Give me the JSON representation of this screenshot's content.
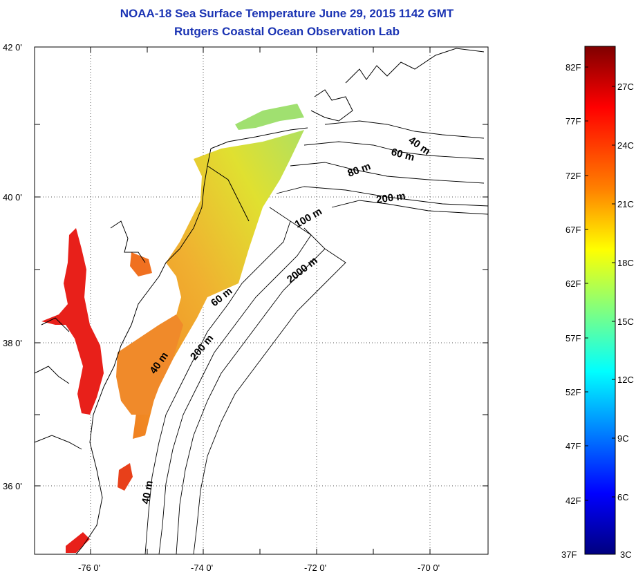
{
  "title": "NOAA-18 Sea Surface Temperature June 29, 2015 1142 GMT",
  "subtitle": "Rutgers Coastal Ocean Observation Lab",
  "map": {
    "lat_labels": [
      "42 0'",
      "40 0'",
      "38 0'",
      "36 0'"
    ],
    "lon_labels": [
      "-76 0'",
      "-74 0'",
      "-72 0'",
      "-70 0'"
    ],
    "grid": true,
    "depth_labels": [
      "40 m",
      "60 m",
      "80 m",
      "200 m",
      "100 m",
      "2000 m",
      "60 m",
      "200 m",
      "40 m",
      "40 m"
    ]
  },
  "colorbar": {
    "fahrenheit": [
      "82F",
      "77F",
      "72F",
      "67F",
      "62F",
      "57F",
      "52F",
      "47F",
      "42F",
      "37F"
    ],
    "celsius": [
      "27C",
      "24C",
      "21C",
      "18C",
      "15C",
      "12C",
      "9C",
      "6C",
      "3C"
    ],
    "colors": [
      "#7f0000",
      "#ff0000",
      "#ff8000",
      "#ffff00",
      "#80ff80",
      "#00ffff",
      "#0080ff",
      "#0000ff",
      "#00007f"
    ]
  },
  "sst_colors": {
    "warm_bay": "#e8201a",
    "shelf_orange": "#f08a2a",
    "shelf_yellow": "#e0d02a",
    "cool_north": "#a8e060"
  }
}
